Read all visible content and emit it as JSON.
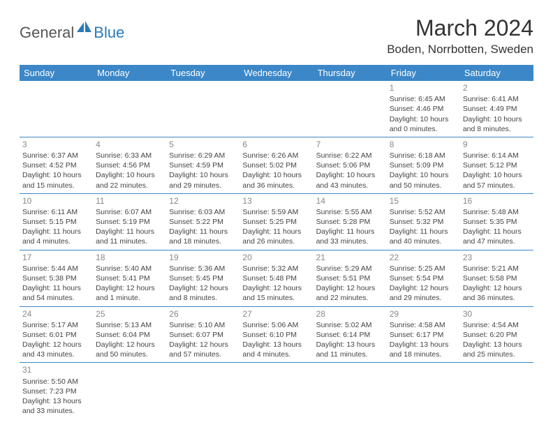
{
  "logo": {
    "part1": "General",
    "part2": "Blue"
  },
  "title": "March 2024",
  "location": "Boden, Norrbotten, Sweden",
  "colors": {
    "header_bg": "#3b87c8",
    "header_text": "#ffffff",
    "row_border": "#3b87c8",
    "daynum": "#888888",
    "body_text": "#444444",
    "logo_gray": "#555555",
    "logo_blue": "#2a7ab8"
  },
  "typography": {
    "title_fontsize": 32,
    "location_fontsize": 17,
    "dayheader_fontsize": 13,
    "cell_fontsize": 10.5
  },
  "day_headers": [
    "Sunday",
    "Monday",
    "Tuesday",
    "Wednesday",
    "Thursday",
    "Friday",
    "Saturday"
  ],
  "weeks": [
    [
      null,
      null,
      null,
      null,
      null,
      {
        "n": "1",
        "sr": "Sunrise: 6:45 AM",
        "ss": "Sunset: 4:46 PM",
        "dl1": "Daylight: 10 hours",
        "dl2": "and 0 minutes."
      },
      {
        "n": "2",
        "sr": "Sunrise: 6:41 AM",
        "ss": "Sunset: 4:49 PM",
        "dl1": "Daylight: 10 hours",
        "dl2": "and 8 minutes."
      }
    ],
    [
      {
        "n": "3",
        "sr": "Sunrise: 6:37 AM",
        "ss": "Sunset: 4:52 PM",
        "dl1": "Daylight: 10 hours",
        "dl2": "and 15 minutes."
      },
      {
        "n": "4",
        "sr": "Sunrise: 6:33 AM",
        "ss": "Sunset: 4:56 PM",
        "dl1": "Daylight: 10 hours",
        "dl2": "and 22 minutes."
      },
      {
        "n": "5",
        "sr": "Sunrise: 6:29 AM",
        "ss": "Sunset: 4:59 PM",
        "dl1": "Daylight: 10 hours",
        "dl2": "and 29 minutes."
      },
      {
        "n": "6",
        "sr": "Sunrise: 6:26 AM",
        "ss": "Sunset: 5:02 PM",
        "dl1": "Daylight: 10 hours",
        "dl2": "and 36 minutes."
      },
      {
        "n": "7",
        "sr": "Sunrise: 6:22 AM",
        "ss": "Sunset: 5:06 PM",
        "dl1": "Daylight: 10 hours",
        "dl2": "and 43 minutes."
      },
      {
        "n": "8",
        "sr": "Sunrise: 6:18 AM",
        "ss": "Sunset: 5:09 PM",
        "dl1": "Daylight: 10 hours",
        "dl2": "and 50 minutes."
      },
      {
        "n": "9",
        "sr": "Sunrise: 6:14 AM",
        "ss": "Sunset: 5:12 PM",
        "dl1": "Daylight: 10 hours",
        "dl2": "and 57 minutes."
      }
    ],
    [
      {
        "n": "10",
        "sr": "Sunrise: 6:11 AM",
        "ss": "Sunset: 5:15 PM",
        "dl1": "Daylight: 11 hours",
        "dl2": "and 4 minutes."
      },
      {
        "n": "11",
        "sr": "Sunrise: 6:07 AM",
        "ss": "Sunset: 5:19 PM",
        "dl1": "Daylight: 11 hours",
        "dl2": "and 11 minutes."
      },
      {
        "n": "12",
        "sr": "Sunrise: 6:03 AM",
        "ss": "Sunset: 5:22 PM",
        "dl1": "Daylight: 11 hours",
        "dl2": "and 18 minutes."
      },
      {
        "n": "13",
        "sr": "Sunrise: 5:59 AM",
        "ss": "Sunset: 5:25 PM",
        "dl1": "Daylight: 11 hours",
        "dl2": "and 26 minutes."
      },
      {
        "n": "14",
        "sr": "Sunrise: 5:55 AM",
        "ss": "Sunset: 5:28 PM",
        "dl1": "Daylight: 11 hours",
        "dl2": "and 33 minutes."
      },
      {
        "n": "15",
        "sr": "Sunrise: 5:52 AM",
        "ss": "Sunset: 5:32 PM",
        "dl1": "Daylight: 11 hours",
        "dl2": "and 40 minutes."
      },
      {
        "n": "16",
        "sr": "Sunrise: 5:48 AM",
        "ss": "Sunset: 5:35 PM",
        "dl1": "Daylight: 11 hours",
        "dl2": "and 47 minutes."
      }
    ],
    [
      {
        "n": "17",
        "sr": "Sunrise: 5:44 AM",
        "ss": "Sunset: 5:38 PM",
        "dl1": "Daylight: 11 hours",
        "dl2": "and 54 minutes."
      },
      {
        "n": "18",
        "sr": "Sunrise: 5:40 AM",
        "ss": "Sunset: 5:41 PM",
        "dl1": "Daylight: 12 hours",
        "dl2": "and 1 minute."
      },
      {
        "n": "19",
        "sr": "Sunrise: 5:36 AM",
        "ss": "Sunset: 5:45 PM",
        "dl1": "Daylight: 12 hours",
        "dl2": "and 8 minutes."
      },
      {
        "n": "20",
        "sr": "Sunrise: 5:32 AM",
        "ss": "Sunset: 5:48 PM",
        "dl1": "Daylight: 12 hours",
        "dl2": "and 15 minutes."
      },
      {
        "n": "21",
        "sr": "Sunrise: 5:29 AM",
        "ss": "Sunset: 5:51 PM",
        "dl1": "Daylight: 12 hours",
        "dl2": "and 22 minutes."
      },
      {
        "n": "22",
        "sr": "Sunrise: 5:25 AM",
        "ss": "Sunset: 5:54 PM",
        "dl1": "Daylight: 12 hours",
        "dl2": "and 29 minutes."
      },
      {
        "n": "23",
        "sr": "Sunrise: 5:21 AM",
        "ss": "Sunset: 5:58 PM",
        "dl1": "Daylight: 12 hours",
        "dl2": "and 36 minutes."
      }
    ],
    [
      {
        "n": "24",
        "sr": "Sunrise: 5:17 AM",
        "ss": "Sunset: 6:01 PM",
        "dl1": "Daylight: 12 hours",
        "dl2": "and 43 minutes."
      },
      {
        "n": "25",
        "sr": "Sunrise: 5:13 AM",
        "ss": "Sunset: 6:04 PM",
        "dl1": "Daylight: 12 hours",
        "dl2": "and 50 minutes."
      },
      {
        "n": "26",
        "sr": "Sunrise: 5:10 AM",
        "ss": "Sunset: 6:07 PM",
        "dl1": "Daylight: 12 hours",
        "dl2": "and 57 minutes."
      },
      {
        "n": "27",
        "sr": "Sunrise: 5:06 AM",
        "ss": "Sunset: 6:10 PM",
        "dl1": "Daylight: 13 hours",
        "dl2": "and 4 minutes."
      },
      {
        "n": "28",
        "sr": "Sunrise: 5:02 AM",
        "ss": "Sunset: 6:14 PM",
        "dl1": "Daylight: 13 hours",
        "dl2": "and 11 minutes."
      },
      {
        "n": "29",
        "sr": "Sunrise: 4:58 AM",
        "ss": "Sunset: 6:17 PM",
        "dl1": "Daylight: 13 hours",
        "dl2": "and 18 minutes."
      },
      {
        "n": "30",
        "sr": "Sunrise: 4:54 AM",
        "ss": "Sunset: 6:20 PM",
        "dl1": "Daylight: 13 hours",
        "dl2": "and 25 minutes."
      }
    ],
    [
      {
        "n": "31",
        "sr": "Sunrise: 5:50 AM",
        "ss": "Sunset: 7:23 PM",
        "dl1": "Daylight: 13 hours",
        "dl2": "and 33 minutes."
      },
      null,
      null,
      null,
      null,
      null,
      null
    ]
  ]
}
